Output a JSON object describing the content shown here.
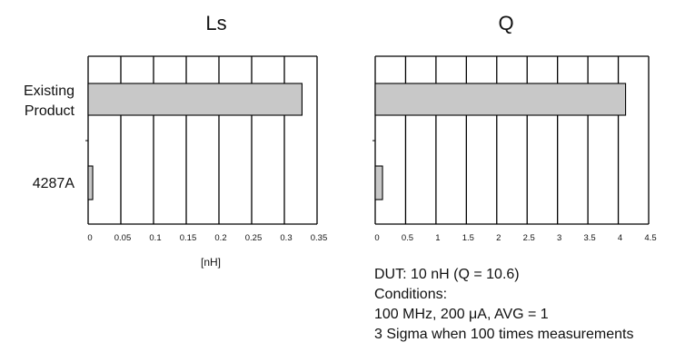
{
  "chart_data": [
    {
      "type": "bar",
      "orientation": "horizontal",
      "title": "Ls",
      "categories": [
        "Existing Product",
        "4287A"
      ],
      "category_lines": [
        [
          "Existing",
          "Product"
        ],
        [
          "4287A"
        ]
      ],
      "values": [
        0.327,
        0.007
      ],
      "xlabel": "[nH]",
      "xlim": [
        0,
        0.35
      ],
      "xticks": [
        "0",
        "0.05",
        "0.1",
        "0.15",
        "0.2",
        "0.25",
        "0.3",
        "0.35"
      ],
      "grid": "vertical",
      "bar_color": "#c8c8c8"
    },
    {
      "type": "bar",
      "orientation": "horizontal",
      "title": "Q",
      "categories": [
        "Existing Product",
        "4287A"
      ],
      "values": [
        4.12,
        0.12
      ],
      "xlim": [
        0,
        4.5
      ],
      "xticks": [
        "0",
        "0.5",
        "1",
        "1.5",
        "2",
        "2.5",
        "3",
        "3.5",
        "4",
        "4.5"
      ],
      "grid": "vertical",
      "bar_color": "#c8c8c8"
    }
  ],
  "notes": {
    "dut": "DUT: 10 nH (Q = 10.6)",
    "conditions_label": "Conditions:",
    "conditions": "100 MHz, 200 μA, AVG = 1",
    "sigma": "3 Sigma when 100 times measurements"
  }
}
